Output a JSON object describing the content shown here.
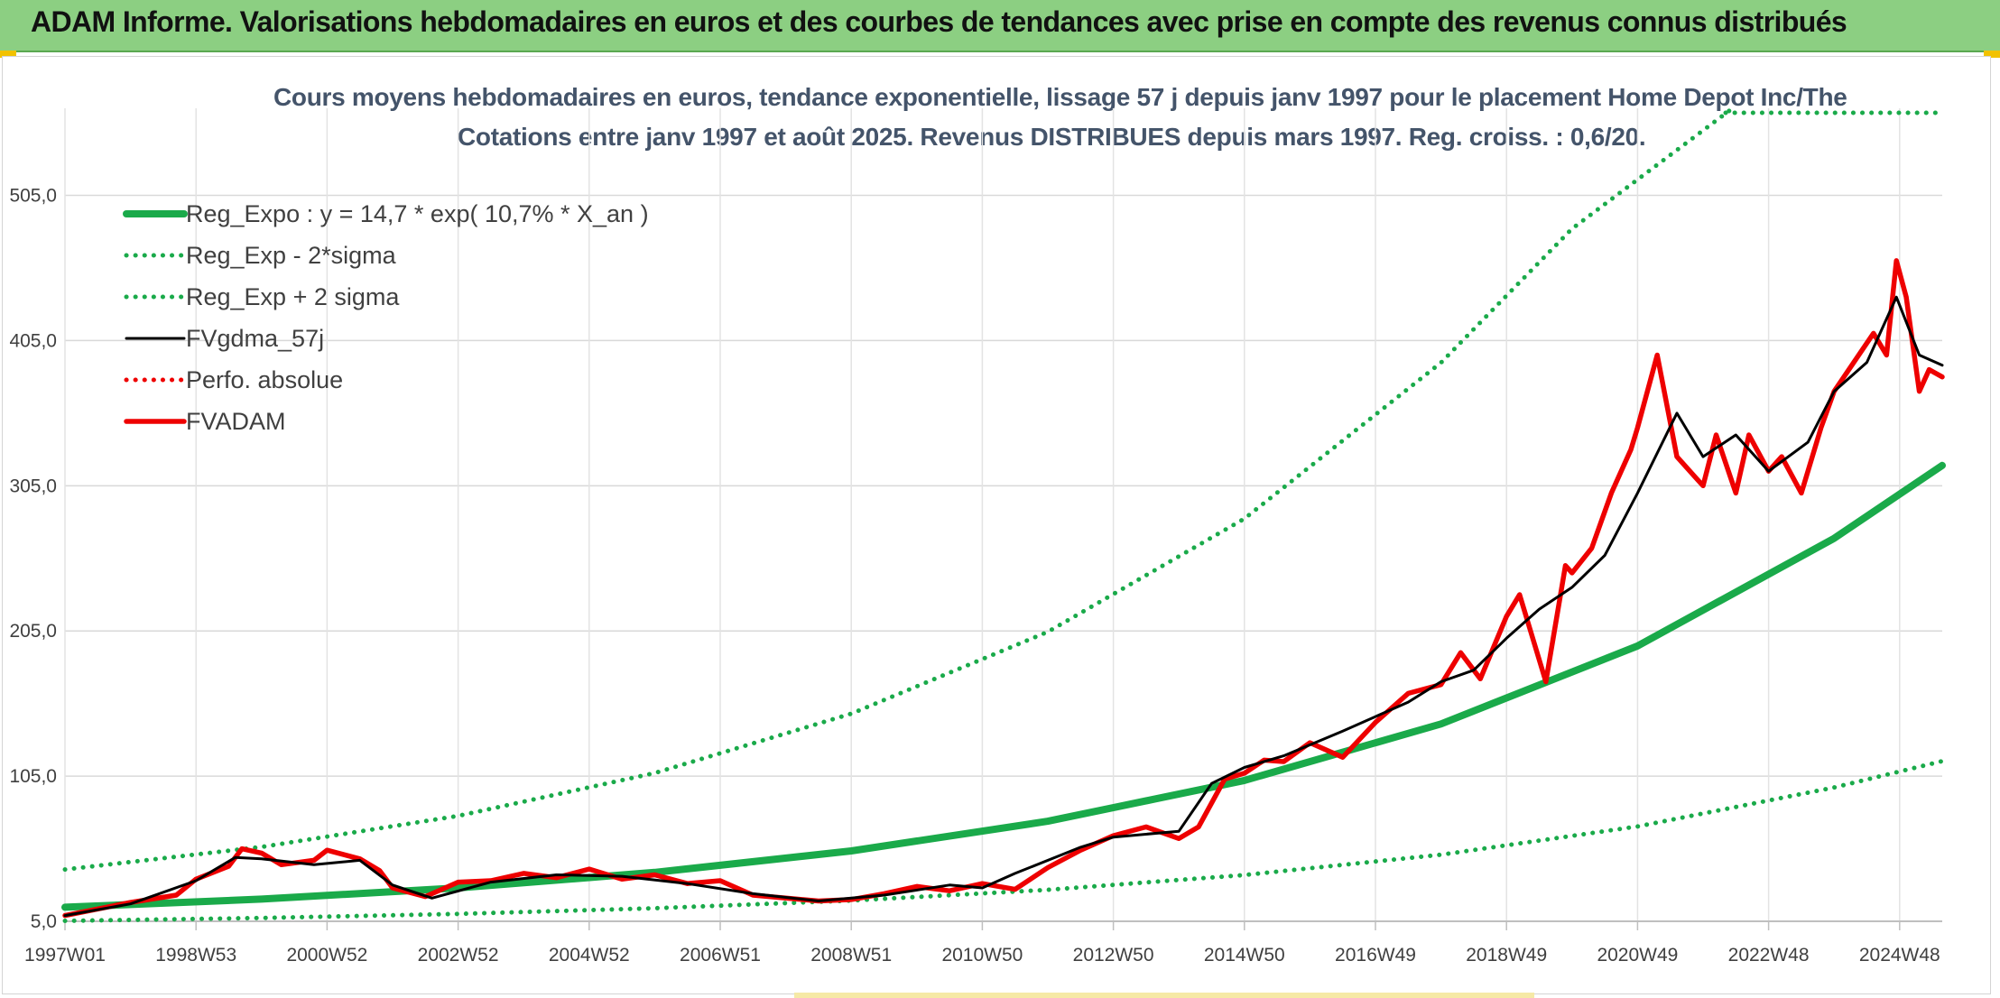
{
  "header": {
    "title": "ADAM Informe. Valorisations hebdomadaires en euros et des courbes de tendances avec prise en compte des revenus connus distribués"
  },
  "chart_data": {
    "type": "line",
    "title_line1": "Cours moyens hebdomadaires en euros, tendance exponentielle, lissage 57 j depuis janv 1997 pour le placement Home Depot Inc/The",
    "title_line2": "Cotations entre janv 1997 et août 2025. Revenus DISTRIBUES depuis mars 1997. Reg. croiss. : 0,6/20.",
    "ylim": [
      5,
      565
    ],
    "yticks": [
      "5,0",
      "105,0",
      "205,0",
      "305,0",
      "405,0",
      "505,0"
    ],
    "ytick_values": [
      5,
      105,
      205,
      305,
      405,
      505
    ],
    "xlim": [
      1997.0,
      2025.65
    ],
    "xticks": [
      "1997W01",
      "1998W53",
      "2000W52",
      "2002W52",
      "2004W52",
      "2006W51",
      "2008W51",
      "2010W50",
      "2012W50",
      "2014W50",
      "2016W49",
      "2018W49",
      "2020W49",
      "2022W48",
      "2024W48"
    ],
    "xtick_values": [
      1997.0,
      1999.0,
      2001.0,
      2003.0,
      2005.0,
      2007.0,
      2009.0,
      2011.0,
      2013.0,
      2015.0,
      2017.0,
      2019.0,
      2021.0,
      2023.0,
      2025.0
    ],
    "grid": true,
    "legend_position": "top-left",
    "colors": {
      "green": "#1aaa4a",
      "black": "#000000",
      "red": "#ee0000"
    },
    "series": [
      {
        "name": "Reg_Expo : y = 14,7 * exp( 10,7% *  X_an )",
        "style": "solid",
        "color": "#1aaa4a",
        "x": [
          1997.0,
          2000.0,
          2003.0,
          2006.0,
          2009.0,
          2012.0,
          2015.0,
          2018.0,
          2021.0,
          2024.0,
          2025.65
        ],
        "y": [
          14.7,
          20.3,
          28.0,
          38.7,
          53.5,
          73.9,
          102.0,
          140.9,
          194.6,
          268.8,
          319.0
        ]
      },
      {
        "name": "Reg_Exp - 2*sigma",
        "style": "dotted",
        "color": "#1aaa4a",
        "x": [
          1997.0,
          2000.0,
          2003.0,
          2006.0,
          2009.0,
          2012.0,
          2015.0,
          2018.0,
          2021.0,
          2024.0,
          2025.65
        ],
        "y": [
          5.3,
          7.3,
          10.1,
          14.0,
          19.3,
          26.7,
          36.9,
          50.9,
          70.3,
          97.2,
          115.3
        ]
      },
      {
        "name": "Reg_Exp + 2 sigma",
        "style": "dotted",
        "color": "#1aaa4a",
        "x": [
          1997.0,
          2000.0,
          2003.0,
          2006.0,
          2009.0,
          2012.0,
          2015.0,
          2018.0,
          2020.0,
          2022.45
        ],
        "y": [
          40.7,
          56.2,
          77.6,
          107.1,
          148.0,
          204.4,
          282.3,
          389.8,
          482.0,
          565.0
        ]
      },
      {
        "name": "FVgdma_57j",
        "style": "solid",
        "color": "#000000",
        "x": [
          1997.0,
          1998.0,
          1999.0,
          1999.6,
          2000.0,
          2000.8,
          2001.5,
          2002.0,
          2002.6,
          2003.5,
          2004.5,
          2005.5,
          2006.5,
          2007.5,
          2008.5,
          2009.5,
          2010.5,
          2011.0,
          2011.5,
          2012.5,
          2013.0,
          2014.0,
          2014.5,
          2015.0,
          2015.6,
          2016.5,
          2017.5,
          2018.0,
          2018.5,
          2019.0,
          2019.5,
          2020.0,
          2020.5,
          2021.0,
          2021.6,
          2022.0,
          2022.5,
          2023.0,
          2023.6,
          2024.0,
          2024.5,
          2024.95,
          2025.3,
          2025.65
        ],
        "y": [
          9,
          17,
          33,
          49,
          48,
          44,
          47,
          30,
          21,
          32,
          37,
          36,
          31,
          24,
          19,
          23,
          30,
          28,
          38,
          56,
          63,
          67,
          100,
          111,
          119,
          136,
          156,
          170,
          178,
          200,
          220,
          235,
          257,
          300,
          355,
          325,
          340,
          315,
          335,
          370,
          390,
          435,
          395,
          388
        ]
      },
      {
        "name": "Perfo. absolue",
        "style": "dotted",
        "color": "#ee0000",
        "x": [],
        "y": []
      },
      {
        "name": "FVADAM",
        "style": "solid",
        "color": "#ee0000",
        "x": [
          1997.0,
          1998.0,
          1998.7,
          1999.0,
          1999.5,
          1999.7,
          2000.0,
          2000.3,
          2000.8,
          2001.0,
          2001.5,
          2001.8,
          2002.0,
          2002.5,
          2003.0,
          2003.5,
          2004.0,
          2004.5,
          2005.0,
          2005.5,
          2006.0,
          2006.5,
          2007.0,
          2007.5,
          2008.0,
          2008.5,
          2009.0,
          2009.5,
          2010.0,
          2010.5,
          2011.0,
          2011.5,
          2012.0,
          2012.5,
          2013.0,
          2013.5,
          2014.0,
          2014.3,
          2014.7,
          2015.0,
          2015.3,
          2015.6,
          2016.0,
          2016.5,
          2017.0,
          2017.5,
          2018.0,
          2018.3,
          2018.6,
          2019.0,
          2019.2,
          2019.6,
          2019.9,
          2020.0,
          2020.3,
          2020.6,
          2020.9,
          2021.0,
          2021.3,
          2021.6,
          2021.9,
          2022.0,
          2022.2,
          2022.5,
          2022.7,
          2023.0,
          2023.2,
          2023.5,
          2023.8,
          2024.0,
          2024.3,
          2024.6,
          2024.8,
          2024.95,
          2025.1,
          2025.3,
          2025.45,
          2025.65
        ],
        "y": [
          9,
          18,
          23,
          34,
          43,
          55,
          52,
          44,
          47,
          54,
          48,
          40,
          28,
          22,
          32,
          33,
          38,
          35,
          41,
          34,
          37,
          31,
          33,
          23,
          21,
          19,
          20,
          24,
          29,
          26,
          31,
          27,
          42,
          54,
          64,
          70,
          62,
          70,
          103,
          107,
          116,
          115,
          128,
          118,
          142,
          162,
          168,
          190,
          172,
          215,
          230,
          170,
          250,
          245,
          262,
          300,
          330,
          345,
          395,
          325,
          310,
          305,
          340,
          300,
          340,
          315,
          325,
          300,
          345,
          370,
          390,
          410,
          395,
          460,
          435,
          370,
          385,
          380
        ]
      }
    ]
  }
}
